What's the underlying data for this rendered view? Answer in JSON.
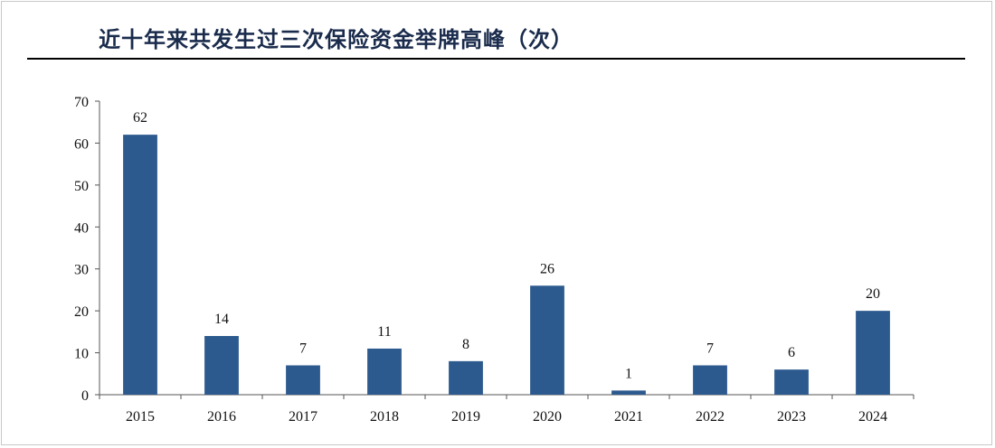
{
  "chart_data": {
    "type": "bar",
    "title": "近十年来共发生过三次保险资金举牌高峰（次）",
    "xlabel": "",
    "ylabel": "",
    "categories": [
      "2015",
      "2016",
      "2017",
      "2018",
      "2019",
      "2020",
      "2021",
      "2022",
      "2023",
      "2024"
    ],
    "values": [
      62,
      14,
      7,
      11,
      8,
      26,
      1,
      7,
      6,
      20
    ],
    "ylim": [
      0,
      70
    ],
    "yticks": [
      0,
      10,
      20,
      30,
      40,
      50,
      60,
      70
    ],
    "bar_color": "#2d5a8e",
    "grid": false,
    "legend": "none"
  }
}
